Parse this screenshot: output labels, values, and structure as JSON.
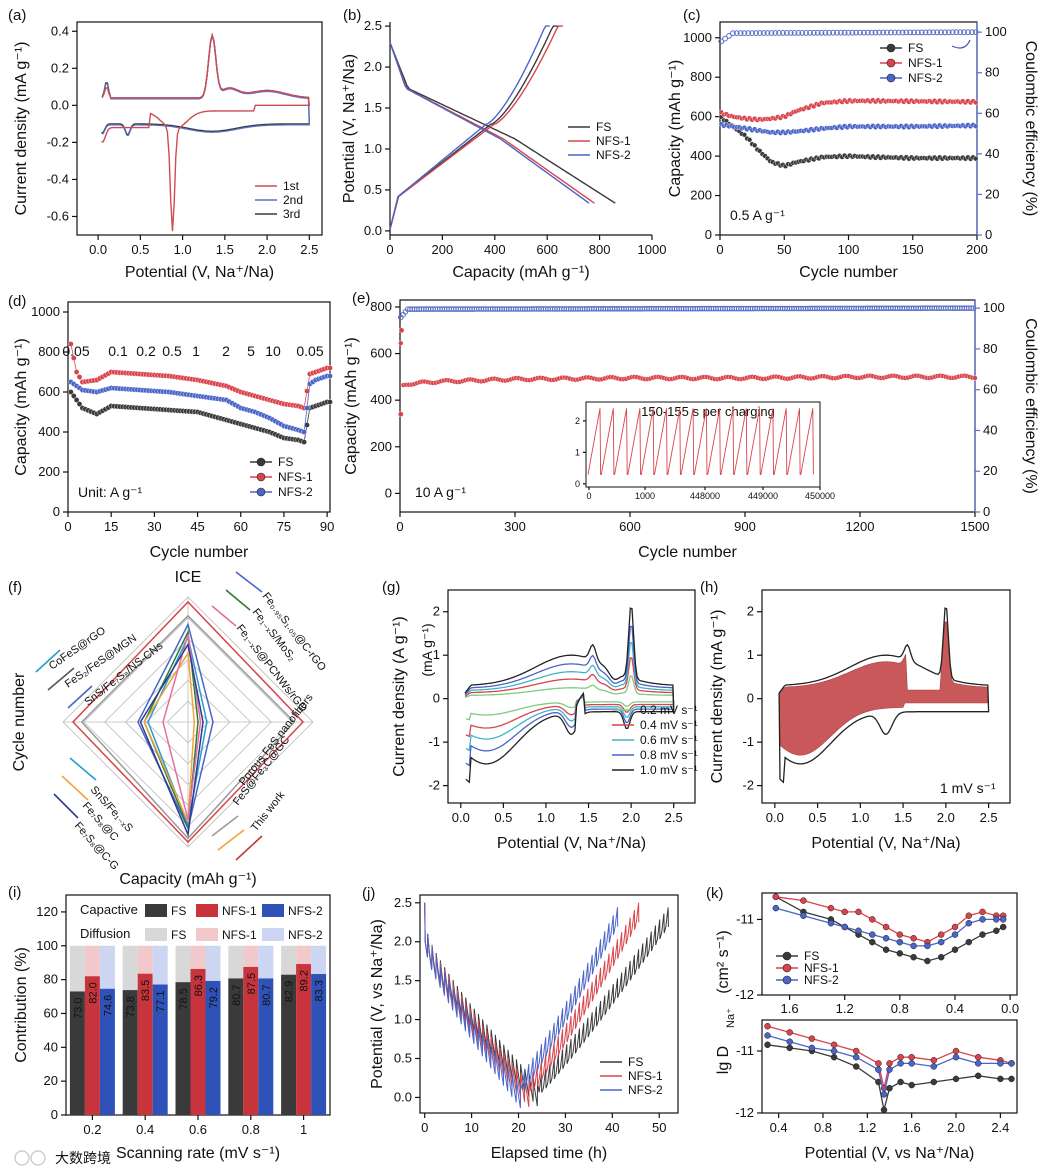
{
  "colors": {
    "fs": "#3a3a3a",
    "nfs1": "#d9434b",
    "nfs2": "#4a64c8",
    "ce": "#5b6fc6",
    "axisr": "#5b6fc6"
  },
  "watermark": "大数跨境",
  "panels": {
    "a": {
      "letter": "(a)",
      "xlabel": "Potential (V, Na⁺/Na)",
      "ylabel": "Current density  (mA g⁻¹)",
      "xticks": [
        "0.0",
        "0.5",
        "1.0",
        "1.5",
        "2.0",
        "2.5"
      ],
      "yticks": [
        "0.4",
        "0.2",
        "0.0",
        "-0.2",
        "-0.4",
        "-0.6"
      ],
      "legend": [
        "1st",
        "2nd",
        "3rd"
      ]
    },
    "b": {
      "letter": "(b)",
      "xlabel": "Capacity  (mAh  g⁻¹)",
      "ylabel": "Potential (V, Na⁺/Na)",
      "xticks": [
        "0",
        "200",
        "400",
        "600",
        "800",
        "1000"
      ],
      "yticks": [
        "2.5",
        "2.0",
        "1.5",
        "1.0",
        "0.5",
        "0.0"
      ],
      "legend": [
        "FS",
        "NFS-1",
        "NFS-2"
      ]
    },
    "c": {
      "letter": "(c)",
      "xlabel": "Cycle number",
      "ylabel": "Capacity  (mAh  g⁻¹)",
      "ylabel2": "Coulombic efficiency  (%)",
      "xticks": [
        "0",
        "50",
        "100",
        "150",
        "200"
      ],
      "yticks": [
        "1000",
        "800",
        "600",
        "400",
        "200",
        "0"
      ],
      "yticks2": [
        "100",
        "80",
        "60",
        "40",
        "20",
        "0"
      ],
      "legend": [
        "FS",
        "NFS-1",
        "NFS-2"
      ],
      "annotation": "0.5 A g⁻¹"
    },
    "d": {
      "letter": "(d)",
      "xlabel": "Cycle number",
      "ylabel": "Capacity  (mAh  g⁻¹)",
      "xticks": [
        "0",
        "15",
        "30",
        "45",
        "60",
        "75",
        "90"
      ],
      "yticks": [
        "1000",
        "800",
        "600",
        "400",
        "200",
        "0"
      ],
      "rates": [
        "0.05",
        "0.1",
        "0.2",
        "0.5",
        "1",
        "2",
        "5",
        "10",
        "0.05"
      ],
      "legend": [
        "FS",
        "NFS-1",
        "NFS-2"
      ],
      "unit": "Unit: A g⁻¹"
    },
    "e": {
      "letter": "(e)",
      "xlabel": "Cycle number",
      "ylabel": "Capacity  (mAh  g⁻¹)",
      "ylabel2": "Coulombic efficiency  (%)",
      "xticks": [
        "0",
        "300",
        "600",
        "900",
        "1200",
        "1500"
      ],
      "yticks": [
        "800",
        "600",
        "400",
        "200",
        "0"
      ],
      "yticks2": [
        "100",
        "80",
        "60",
        "40",
        "20",
        "0"
      ],
      "annotation": "10 A g⁻¹",
      "inset": {
        "title": "150-155 s per charging",
        "xticks": [
          "0",
          "1000",
          "448000",
          "449000",
          "450000"
        ],
        "yticks": [
          "2",
          "1",
          "0"
        ]
      }
    },
    "f": {
      "letter": "(f)",
      "top": "ICE",
      "bottom": "Capacity  (mAh  g⁻¹)",
      "left": "Cycle number",
      "labels": [
        "CoFeS@rGO",
        "FeS₂/FeS@MGN",
        "SnS/Fe₇S₈/NS-CNs",
        "Fe₀.₉₅S₁.₀₅@C-rGO",
        "Fe₁₋ₓS/MoS₂",
        "Fe₁₋ₓS@PCNWs/rGO",
        "SnS/Fe₁₋ₓS",
        "Fe₇S₈@C",
        "Fe₇S₈@C-G",
        "Porous FeS nanofibers",
        "FeS@Fe₃C@GC",
        "This work"
      ]
    },
    "g": {
      "letter": "(g)",
      "xlabel": "Potential (V, Na⁺/Na)",
      "ylabel": "Current density  (A g⁻¹)",
      "ylabel_small": "(mA g⁻¹)",
      "xticks": [
        "0.0",
        "0.5",
        "1.0",
        "1.5",
        "2.0",
        "2.5"
      ],
      "yticks": [
        "2",
        "1",
        "0",
        "-1",
        "-2"
      ],
      "legend": [
        "0.2 mV s⁻¹",
        "0.4 mV s⁻¹",
        "0.6 mV s⁻¹",
        "0.8 mV s⁻¹",
        "1.0 mV s⁻¹"
      ]
    },
    "h": {
      "letter": "(h)",
      "xlabel": "Potential (V, Na⁺/Na)",
      "ylabel": "Current density  (mA g⁻¹)",
      "xticks": [
        "0.0",
        "0.5",
        "1.0",
        "1.5",
        "2.0",
        "2.5"
      ],
      "yticks": [
        "2",
        "1",
        "0",
        "-1",
        "-2"
      ],
      "annotation": "1 mV s⁻¹"
    },
    "i": {
      "letter": "(i)",
      "xlabel": "Scanning rate (mV  s⁻¹)",
      "ylabel": "Contribution (%)",
      "xticks": [
        "0.2",
        "0.4",
        "0.6",
        "0.8",
        "1"
      ],
      "yticks": [
        "120",
        "100",
        "80",
        "60",
        "40",
        "20",
        "0"
      ],
      "legend_cap": "Capactive",
      "legend_dif": "Diffusion",
      "series": [
        "FS",
        "NFS-1",
        "NFS-2"
      ]
    },
    "j": {
      "letter": "(j)",
      "xlabel": "Elapsed time (h)",
      "ylabel": "Potential (V, vs Na⁺/Na)",
      "xticks": [
        "0",
        "10",
        "20",
        "30",
        "40",
        "50"
      ],
      "yticks": [
        "2.5",
        "2.0",
        "1.5",
        "1.0",
        "0.5",
        "0.0"
      ],
      "legend": [
        "FS",
        "NFS-1",
        "NFS-2"
      ]
    },
    "k": {
      "letter": "(k)",
      "xlabel": "Potential (V, vs Na⁺/Na)",
      "ylabel": "lg D",
      "ylabel_sub": "Na⁺",
      "ylabel_unit": "(cm² s⁻¹)",
      "xticks_top": [
        "1.6",
        "1.2",
        "0.8",
        "0.4",
        "0.0"
      ],
      "xticks_bot": [
        "0.4",
        "0.8",
        "1.2",
        "1.6",
        "2.0",
        "2.4"
      ],
      "yticks": [
        "-11",
        "-12"
      ],
      "legend": [
        "FS",
        "NFS-1",
        "NFS-2"
      ]
    }
  },
  "chart_data": [
    {
      "id": "a",
      "type": "line",
      "title": "",
      "xlim": [
        -0.25,
        2.65
      ],
      "ylim": [
        -0.7,
        0.45
      ],
      "series": [
        {
          "name": "1st"
        },
        {
          "name": "2nd"
        },
        {
          "name": "3rd"
        }
      ]
    },
    {
      "id": "b",
      "type": "line",
      "xlim": [
        0,
        1000
      ],
      "ylim": [
        -0.05,
        2.55
      ],
      "series": [
        {
          "name": "FS",
          "discharge_end": 860,
          "charge_end": 640
        },
        {
          "name": "NFS-1",
          "discharge_end": 780,
          "charge_end": 660
        },
        {
          "name": "NFS-2",
          "discharge_end": 760,
          "charge_end": 610
        }
      ]
    },
    {
      "id": "c",
      "type": "scatter",
      "xlim": [
        0,
        200
      ],
      "ylim": [
        0,
        1080
      ],
      "y2lim": [
        0,
        105
      ],
      "series": [
        {
          "name": "FS",
          "x": [
            0,
            10,
            20,
            30,
            40,
            50,
            60,
            80,
            100,
            120,
            150,
            200
          ],
          "values": [
            600,
            550,
            500,
            430,
            370,
            350,
            370,
            395,
            400,
            395,
            390,
            390
          ]
        },
        {
          "name": "NFS-1",
          "x": [
            0,
            10,
            20,
            30,
            40,
            50,
            60,
            80,
            100,
            120,
            150,
            200
          ],
          "values": [
            620,
            600,
            590,
            585,
            590,
            600,
            630,
            670,
            680,
            680,
            678,
            675
          ]
        },
        {
          "name": "NFS-2",
          "x": [
            0,
            10,
            20,
            30,
            40,
            50,
            60,
            80,
            100,
            120,
            150,
            200
          ],
          "values": [
            560,
            550,
            540,
            530,
            520,
            520,
            525,
            540,
            550,
            550,
            550,
            555
          ]
        },
        {
          "name": "CE",
          "x": [
            0,
            10,
            200
          ],
          "values": [
            95,
            99.5,
            100
          ]
        }
      ]
    },
    {
      "id": "d",
      "type": "scatter",
      "xlim": [
        0,
        91
      ],
      "ylim": [
        0,
        1050
      ],
      "categories": [
        "0.05",
        "0.1",
        "0.2",
        "0.5",
        "1",
        "2",
        "5",
        "10",
        "0.05"
      ],
      "series": [
        {
          "name": "FS",
          "x": [
            1,
            3,
            5,
            10,
            15,
            25,
            35,
            45,
            55,
            60,
            65,
            70,
            75,
            80,
            82,
            84,
            86,
            90
          ],
          "values": [
            600,
            560,
            520,
            490,
            530,
            520,
            510,
            500,
            460,
            440,
            420,
            400,
            370,
            360,
            350,
            520,
            530,
            550
          ]
        },
        {
          "name": "NFS-1",
          "x": [
            1,
            3,
            5,
            10,
            15,
            25,
            35,
            45,
            55,
            60,
            65,
            70,
            75,
            80,
            82,
            84,
            86,
            90
          ],
          "values": [
            840,
            700,
            650,
            660,
            700,
            690,
            680,
            660,
            630,
            600,
            580,
            560,
            540,
            530,
            520,
            690,
            700,
            720
          ]
        },
        {
          "name": "NFS-2",
          "x": [
            1,
            3,
            5,
            10,
            15,
            25,
            35,
            45,
            55,
            60,
            65,
            70,
            75,
            80,
            82,
            84,
            86,
            90
          ],
          "values": [
            650,
            630,
            610,
            600,
            620,
            610,
            600,
            580,
            560,
            520,
            500,
            470,
            430,
            410,
            400,
            640,
            660,
            680
          ]
        }
      ]
    },
    {
      "id": "e",
      "type": "scatter",
      "xlim": [
        0,
        1500
      ],
      "ylim": [
        -80,
        830
      ],
      "y2lim": [
        0,
        104
      ],
      "series": [
        {
          "name": "capacity",
          "x": [
            0,
            5,
            20,
            100,
            300,
            600,
            900,
            1200,
            1500
          ],
          "values": [
            760,
            460,
            470,
            480,
            490,
            495,
            495,
            500,
            500
          ]
        },
        {
          "name": "CE",
          "x": [
            0,
            20,
            1500
          ],
          "values": [
            95,
            99.5,
            100
          ]
        }
      ]
    },
    {
      "id": "f",
      "type": "radar",
      "axes": [
        "ICE",
        "Capacity",
        "Cycle number"
      ]
    },
    {
      "id": "g",
      "type": "line",
      "xlim": [
        -0.15,
        2.75
      ],
      "ylim": [
        -2.4,
        2.5
      ],
      "series": [
        {
          "name": "0.2 mV s⁻¹"
        },
        {
          "name": "0.4 mV s⁻¹"
        },
        {
          "name": "0.6 mV s⁻¹"
        },
        {
          "name": "0.8 mV s⁻¹"
        },
        {
          "name": "1.0 mV s⁻¹"
        }
      ]
    },
    {
      "id": "h",
      "type": "area",
      "xlim": [
        -0.15,
        2.75
      ],
      "ylim": [
        -2.4,
        2.5
      ]
    },
    {
      "id": "i",
      "type": "bar",
      "categories": [
        "0.2",
        "0.4",
        "0.6",
        "0.8",
        "1"
      ],
      "ylim": [
        0,
        130
      ],
      "series": [
        {
          "name": "FS",
          "values": [
            73.0,
            73.8,
            78.5,
            80.7,
            82.9
          ]
        },
        {
          "name": "NFS-1",
          "values": [
            82.0,
            83.5,
            86.3,
            87.5,
            89.2
          ]
        },
        {
          "name": "NFS-2",
          "values": [
            74.6,
            77.1,
            79.2,
            80.7,
            83.3
          ]
        }
      ]
    },
    {
      "id": "j",
      "type": "line",
      "xlim": [
        -1,
        54
      ],
      "ylim": [
        -0.2,
        2.6
      ],
      "series": [
        {
          "name": "FS",
          "min_time": 24,
          "end_time": 52
        },
        {
          "name": "NFS-1",
          "min_time": 22,
          "end_time": 45
        },
        {
          "name": "NFS-2",
          "min_time": 20,
          "end_time": 41
        }
      ]
    },
    {
      "id": "k_top",
      "type": "line",
      "xlim": [
        1.8,
        -0.05
      ],
      "ylim": [
        -12,
        -10.65
      ],
      "x": [
        1.7,
        1.5,
        1.3,
        1.2,
        1.1,
        1.0,
        0.9,
        0.8,
        0.7,
        0.6,
        0.5,
        0.4,
        0.3,
        0.2,
        0.1,
        0.05
      ],
      "series": [
        {
          "name": "FS",
          "values": [
            -10.7,
            -10.9,
            -11.0,
            -11.1,
            -11.2,
            -11.3,
            -11.4,
            -11.45,
            -11.5,
            -11.55,
            -11.5,
            -11.4,
            -11.3,
            -11.2,
            -11.15,
            -11.1
          ]
        },
        {
          "name": "NFS-1",
          "values": [
            -10.7,
            -10.75,
            -10.85,
            -10.9,
            -10.9,
            -11.0,
            -11.1,
            -11.2,
            -11.25,
            -11.3,
            -11.2,
            -11.1,
            -10.95,
            -10.9,
            -10.95,
            -10.95
          ]
        },
        {
          "name": "NFS-2",
          "values": [
            -10.85,
            -10.95,
            -11.05,
            -11.1,
            -11.15,
            -11.2,
            -11.25,
            -11.3,
            -11.35,
            -11.35,
            -11.3,
            -11.2,
            -11.05,
            -11.0,
            -11.0,
            -11.0
          ]
        }
      ]
    },
    {
      "id": "k_bot",
      "type": "line",
      "xlim": [
        0.25,
        2.55
      ],
      "ylim": [
        -12,
        -10.5
      ],
      "x": [
        0.3,
        0.5,
        0.7,
        0.9,
        1.1,
        1.3,
        1.35,
        1.4,
        1.5,
        1.6,
        1.8,
        2.0,
        2.2,
        2.4,
        2.5
      ],
      "series": [
        {
          "name": "FS",
          "values": [
            -10.9,
            -10.95,
            -11.0,
            -11.1,
            -11.25,
            -11.5,
            -11.95,
            -11.6,
            -11.5,
            -11.55,
            -11.5,
            -11.45,
            -11.4,
            -11.45,
            -11.45
          ]
        },
        {
          "name": "NFS-1",
          "values": [
            -10.6,
            -10.7,
            -10.8,
            -10.9,
            -11.0,
            -11.2,
            -11.6,
            -11.2,
            -11.1,
            -11.1,
            -11.15,
            -11.0,
            -11.1,
            -11.15,
            -11.2
          ]
        },
        {
          "name": "NFS-2",
          "values": [
            -10.75,
            -10.85,
            -10.95,
            -11.0,
            -11.1,
            -11.3,
            -11.7,
            -11.3,
            -11.2,
            -11.2,
            -11.25,
            -11.1,
            -11.2,
            -11.2,
            -11.2
          ]
        }
      ]
    }
  ]
}
